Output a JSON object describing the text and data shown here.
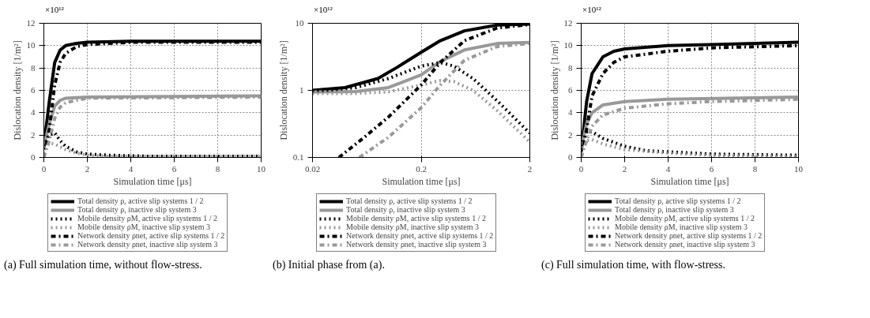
{
  "chart_data": [
    {
      "type": "line",
      "xlabel": "Simulation time [μs]",
      "ylabel": "Dislocation density [1/m²]",
      "xlim": [
        0,
        10
      ],
      "ylim": [
        0,
        12
      ],
      "xticks": [
        0,
        2,
        4,
        6,
        8,
        10
      ],
      "yticks": [
        0,
        2,
        4,
        6,
        8,
        10,
        12
      ],
      "grid": true,
      "legend": "bottom",
      "annotations": [
        "×10¹²",
        "(a) Full simulation time, without flow-stress."
      ],
      "series": [
        {
          "name": "Total density ρ, active slip systems 1 / 2",
          "color": "#000000",
          "line_style": "solid",
          "x": [
            0,
            0.25,
            0.5,
            0.75,
            1,
            1.5,
            2,
            4,
            10
          ],
          "values": [
            1,
            5,
            8.5,
            9.6,
            10,
            10.2,
            10.3,
            10.4,
            10.4
          ]
        },
        {
          "name": "Total density ρ, inactive slip system 3",
          "color": "#999999",
          "line_style": "solid",
          "x": [
            0,
            0.25,
            0.5,
            0.75,
            1,
            2,
            10
          ],
          "values": [
            1,
            3,
            4.6,
            5.1,
            5.3,
            5.4,
            5.5
          ]
        },
        {
          "name": "Mobile density ρM, active slip systems 1 / 2",
          "color": "#000000",
          "line_style": "dotted",
          "x": [
            0,
            0.25,
            0.5,
            0.75,
            1,
            1.5,
            2,
            3,
            5,
            10
          ],
          "values": [
            1,
            2,
            2.2,
            1.5,
            1.0,
            0.5,
            0.3,
            0.2,
            0.1,
            0.1
          ]
        },
        {
          "name": "Mobile density ρM, inactive slip system 3",
          "color": "#999999",
          "line_style": "dotted",
          "x": [
            0,
            0.25,
            0.5,
            1,
            1.5,
            2,
            3,
            10
          ],
          "values": [
            0.9,
            1.3,
            1.2,
            0.7,
            0.4,
            0.2,
            0.1,
            0.1
          ]
        },
        {
          "name": "Network density ρnet, active slip systems 1 / 2",
          "color": "#000000",
          "line_style": "dashdot",
          "x": [
            0,
            0.25,
            0.5,
            0.75,
            1,
            1.5,
            2,
            4,
            10
          ],
          "values": [
            0,
            2.5,
            6.5,
            8.5,
            9.3,
            9.9,
            10.1,
            10.3,
            10.3
          ]
        },
        {
          "name": "Network density ρnet, inactive slip system 3",
          "color": "#999999",
          "line_style": "dashdot",
          "x": [
            0,
            0.25,
            0.5,
            0.75,
            1,
            2,
            10
          ],
          "values": [
            0,
            1.5,
            3.5,
            4.5,
            4.9,
            5.3,
            5.4
          ]
        }
      ]
    },
    {
      "type": "line",
      "xlabel": "Simulation time [μs]",
      "ylabel": "Dislocation density [1/m²]",
      "log": "xy",
      "xlim": [
        0.02,
        2
      ],
      "ylim": [
        0.1,
        10
      ],
      "xticks": [
        0.02,
        0.2,
        2
      ],
      "yticks": [
        0.1,
        1,
        10
      ],
      "grid": true,
      "legend": "bottom",
      "annotations": [
        "×10¹²",
        "(b) Initial phase from (a)."
      ],
      "series": [
        {
          "name": "Total density ρ, active slip systems 1 / 2",
          "color": "#000000",
          "line_style": "solid",
          "x": [
            0.02,
            0.04,
            0.08,
            0.12,
            0.2,
            0.3,
            0.5,
            1,
            2
          ],
          "values": [
            1.0,
            1.1,
            1.5,
            2.2,
            3.7,
            5.5,
            7.7,
            9.4,
            9.7
          ]
        },
        {
          "name": "Total density ρ, inactive slip system 3",
          "color": "#999999",
          "line_style": "solid",
          "x": [
            0.02,
            0.05,
            0.1,
            0.2,
            0.3,
            0.5,
            1,
            2
          ],
          "values": [
            0.95,
            0.96,
            1.1,
            1.7,
            2.7,
            4.0,
            5.0,
            5.2
          ]
        },
        {
          "name": "Mobile density ρM, active slip systems 1 / 2",
          "color": "#000000",
          "line_style": "dotted",
          "x": [
            0.02,
            0.05,
            0.1,
            0.2,
            0.3,
            0.4,
            0.6,
            1,
            2
          ],
          "values": [
            0.95,
            1.1,
            1.5,
            2.3,
            2.6,
            2.3,
            1.5,
            0.7,
            0.23
          ]
        },
        {
          "name": "Mobile density ρM, inactive slip system 3",
          "color": "#999999",
          "line_style": "dotted",
          "x": [
            0.02,
            0.05,
            0.1,
            0.2,
            0.3,
            0.4,
            0.6,
            1,
            2
          ],
          "values": [
            0.9,
            0.9,
            0.95,
            1.2,
            1.4,
            1.35,
            1.0,
            0.5,
            0.17
          ]
        },
        {
          "name": "Network density ρnet, active slip systems 1 / 2",
          "color": "#000000",
          "line_style": "dashdot",
          "x": [
            0.035,
            0.06,
            0.1,
            0.2,
            0.3,
            0.5,
            1,
            2
          ],
          "values": [
            0.1,
            0.2,
            0.4,
            1.2,
            2.6,
            5.5,
            8.5,
            9.6
          ]
        },
        {
          "name": "Network density ρnet, inactive slip system 3",
          "color": "#999999",
          "line_style": "dashdot",
          "x": [
            0.054,
            0.1,
            0.2,
            0.3,
            0.5,
            1,
            2
          ],
          "values": [
            0.1,
            0.2,
            0.55,
            1.2,
            2.8,
            4.5,
            5.0
          ]
        }
      ]
    },
    {
      "type": "line",
      "xlabel": "Simulation time [μs]",
      "ylabel": "Dislocation density [1/m²]",
      "xlim": [
        0,
        10
      ],
      "ylim": [
        0,
        12
      ],
      "xticks": [
        0,
        2,
        4,
        6,
        8,
        10
      ],
      "yticks": [
        0,
        2,
        4,
        6,
        8,
        10,
        12
      ],
      "grid": true,
      "legend": "bottom",
      "annotations": [
        "×10¹²",
        "(c) Full simulation time, with flow-stress."
      ],
      "series": [
        {
          "name": "Total density ρ, active slip systems 1 / 2",
          "color": "#000000",
          "line_style": "solid",
          "x": [
            0,
            0.25,
            0.5,
            1,
            1.5,
            2,
            4,
            6,
            10
          ],
          "values": [
            0.5,
            5,
            7.5,
            9,
            9.5,
            9.7,
            10.0,
            10.1,
            10.3
          ]
        },
        {
          "name": "Total density ρ, inactive slip system 3",
          "color": "#999999",
          "line_style": "solid",
          "x": [
            0,
            0.25,
            0.5,
            1,
            2,
            4,
            10
          ],
          "values": [
            0.8,
            3,
            4,
            4.7,
            5.0,
            5.2,
            5.4
          ]
        },
        {
          "name": "Mobile density ρM, active slip systems 1 / 2",
          "color": "#000000",
          "line_style": "dotted",
          "x": [
            0,
            0.25,
            0.5,
            1,
            2,
            3,
            4,
            6,
            10
          ],
          "values": [
            1,
            2.3,
            2.3,
            1.7,
            1.0,
            0.6,
            0.5,
            0.3,
            0.2
          ]
        },
        {
          "name": "Mobile density ρM, inactive slip system 3",
          "color": "#999999",
          "line_style": "dotted",
          "x": [
            0,
            0.25,
            0.5,
            1,
            2,
            4,
            6,
            10
          ],
          "values": [
            0.9,
            1.5,
            1.6,
            1.2,
            0.7,
            0.4,
            0.2,
            0.1
          ]
        },
        {
          "name": "Network density ρnet, active slip systems 1 / 2",
          "color": "#000000",
          "line_style": "dashdot",
          "x": [
            0,
            0.25,
            0.5,
            1,
            1.5,
            2,
            4,
            6,
            10
          ],
          "values": [
            0,
            2.5,
            5.5,
            7.5,
            8.5,
            9.0,
            9.5,
            9.8,
            10.0
          ]
        },
        {
          "name": "Network density ρnet, inactive slip system 3",
          "color": "#999999",
          "line_style": "dashdot",
          "x": [
            0,
            0.25,
            0.5,
            1,
            2,
            4,
            6,
            10
          ],
          "values": [
            0,
            1.5,
            2.8,
            3.8,
            4.4,
            4.8,
            5.0,
            5.2
          ]
        }
      ]
    }
  ]
}
